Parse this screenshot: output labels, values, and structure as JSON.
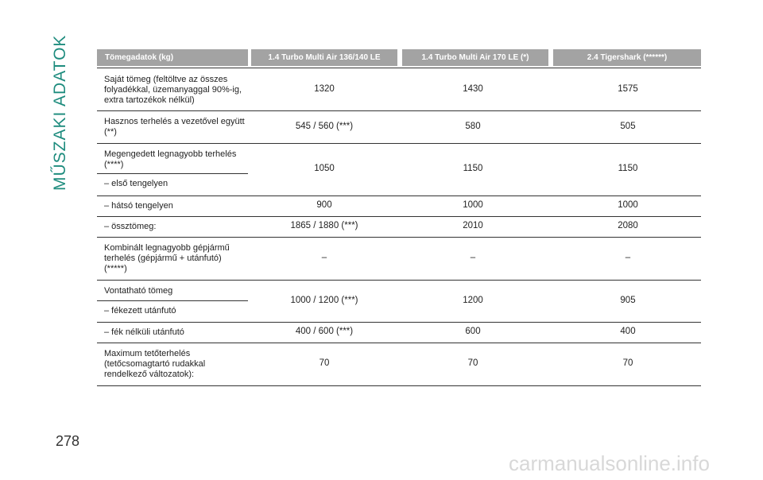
{
  "side_title": "MŰSZAKI ADATOK",
  "page_number": "278",
  "watermark": "carmanualsonline.info",
  "table": {
    "header": [
      "Tömegadatok (kg)",
      "1.4 Turbo Multi Air 136/140 LE",
      "1.4 Turbo Multi Air 170 LE (*)",
      "2.4 Tigershark (******)"
    ],
    "rows": [
      {
        "label": [
          "Saját tömeg (feltöltve az összes",
          "folyadékkal, üzemanyaggal 90%-ig,",
          "extra tartozékok nélkül)"
        ],
        "values": [
          "1320",
          "1430",
          "1575"
        ]
      },
      {
        "label": [
          "Hasznos terhelés a vezetővel együtt",
          "(**)"
        ],
        "values": [
          "545 / 560 (***)",
          "580",
          "505"
        ]
      },
      {
        "label": [
          "Megengedett legnagyobb terhelés",
          "(****)"
        ],
        "sublabel": [
          "– első tengelyen"
        ],
        "values": [
          "1050",
          "1150",
          "1150"
        ]
      },
      {
        "label": [
          "– hátsó tengelyen"
        ],
        "values": [
          "900",
          "1000",
          "1000"
        ]
      },
      {
        "label": [
          "– össztömeg:"
        ],
        "values": [
          "1865 / 1880 (***)",
          "2010",
          "2080"
        ]
      },
      {
        "label": [
          "Kombinált legnagyobb gépjármű",
          "terhelés (gépjármű + utánfutó)",
          "(*****)"
        ],
        "values": [
          "–",
          "–",
          "–"
        ]
      },
      {
        "label": [
          "Vontatható tömeg"
        ],
        "sublabel": [
          "– fékezett utánfutó"
        ],
        "values": [
          "1000 / 1200 (***)",
          "1200",
          "905"
        ]
      },
      {
        "label": [
          "– fék nélküli utánfutó"
        ],
        "values": [
          "400 / 600 (***)",
          "600",
          "400"
        ]
      },
      {
        "label": [
          "Maximum tetőterhelés",
          "(tetőcsomagtartó rudakkal",
          "rendelkező változatok):"
        ],
        "values": [
          "70",
          "70",
          "70"
        ]
      }
    ]
  }
}
